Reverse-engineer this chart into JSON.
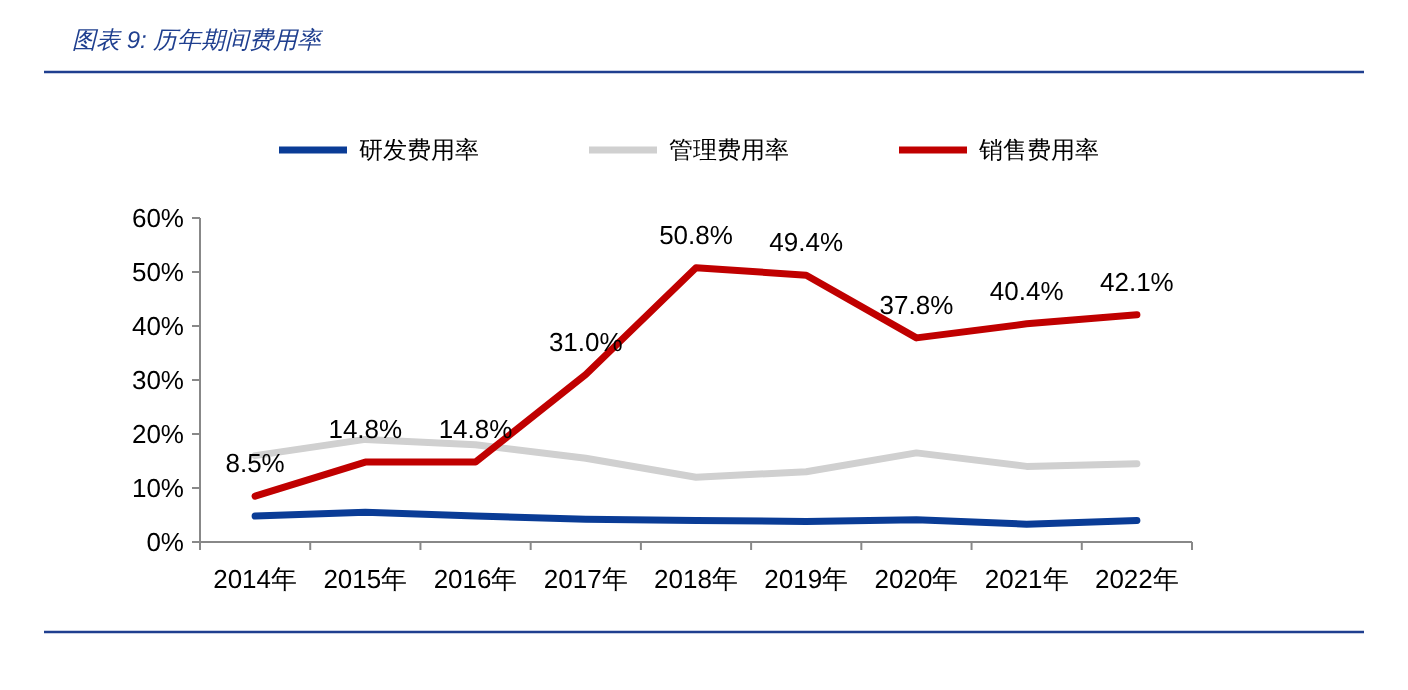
{
  "chart_data": {
    "type": "line",
    "title": "图表 9:  历年期间费用率",
    "categories": [
      "2014年",
      "2015年",
      "2016年",
      "2017年",
      "2018年",
      "2019年",
      "2020年",
      "2021年",
      "2022年"
    ],
    "series": [
      {
        "name": "研发费用率",
        "color": "#0a3c96",
        "values": [
          4.8,
          5.5,
          4.8,
          4.2,
          4.0,
          3.8,
          4.1,
          3.3,
          4.0
        ]
      },
      {
        "name": "管理费用率",
        "color": "#d0d0d0",
        "values": [
          16.0,
          19.0,
          18.0,
          15.5,
          12.0,
          13.0,
          16.5,
          14.0,
          14.5
        ]
      },
      {
        "name": "销售费用率",
        "color": "#c00000",
        "values": [
          8.5,
          14.8,
          14.8,
          31.0,
          50.8,
          49.4,
          37.8,
          40.4,
          42.1
        ],
        "value_labels": [
          "8.5%",
          "14.8%",
          "14.8%",
          "31.0%",
          "50.8%",
          "49.4%",
          "37.8%",
          "40.4%",
          "42.1%"
        ]
      }
    ],
    "ylim": [
      0,
      60
    ],
    "yticks": [
      {
        "value": 0,
        "label": "0%"
      },
      {
        "value": 10,
        "label": "10%"
      },
      {
        "value": 20,
        "label": "20%"
      },
      {
        "value": 30,
        "label": "30%"
      },
      {
        "value": 40,
        "label": "40%"
      },
      {
        "value": 50,
        "label": "50%"
      },
      {
        "value": 60,
        "label": "60%"
      }
    ],
    "grid": false,
    "legend": "top",
    "marker": "none",
    "line_style": "solid"
  }
}
